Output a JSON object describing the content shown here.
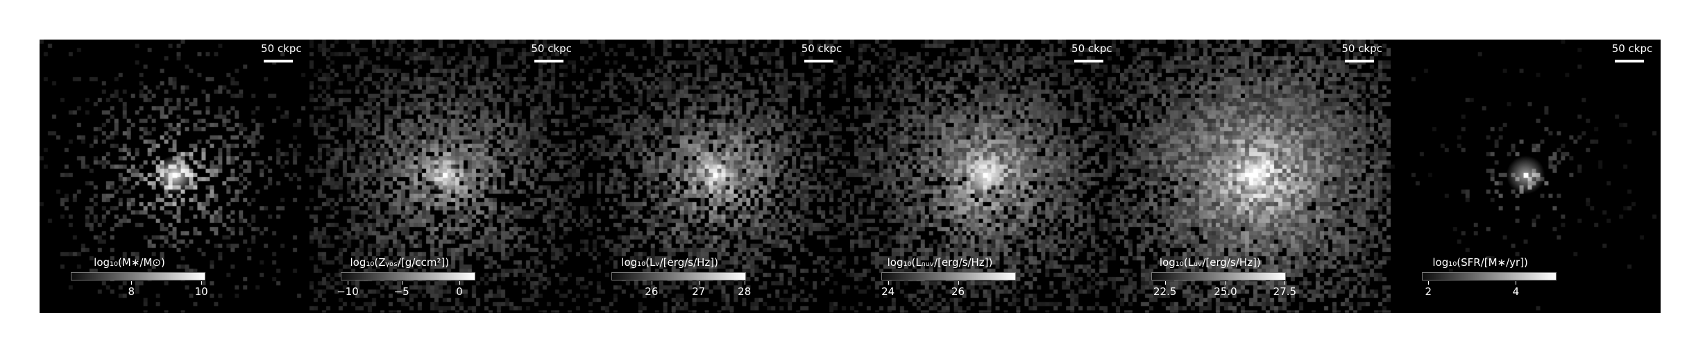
{
  "panels": [
    {
      "scale_label": "50 ckpc",
      "cb_title": "log₁₀(M∗/M⊙)",
      "ticks": [
        {
          "label": "8",
          "pos": 0.45
        },
        {
          "label": "10",
          "pos": 0.97
        }
      ],
      "intensity": 0.9,
      "spread": 0.25,
      "density": 0.35
    },
    {
      "scale_label": "50 ckpc",
      "cb_title": "log₁₀(Zᵧₒₛ/[g/ccm²])",
      "ticks": [
        {
          "label": "−10",
          "pos": 0.05
        },
        {
          "label": "−5",
          "pos": 0.45
        },
        {
          "label": "0",
          "pos": 0.88
        }
      ],
      "intensity": 0.7,
      "spread": 0.55,
      "density": 0.6
    },
    {
      "scale_label": "50 ckpc",
      "cb_title": "log₁₀(Lᵥ/[erg/s/Hz])",
      "ticks": [
        {
          "label": "26",
          "pos": 0.3
        },
        {
          "label": "27",
          "pos": 0.65
        },
        {
          "label": "28",
          "pos": 0.99
        }
      ],
      "intensity": 0.75,
      "spread": 0.5,
      "density": 0.6
    },
    {
      "scale_label": "50 ckpc",
      "cb_title": "log₁₀(Lₙᵤᵥ/[erg/s/Hz])",
      "ticks": [
        {
          "label": "24",
          "pos": 0.05
        },
        {
          "label": "26",
          "pos": 0.57
        }
      ],
      "intensity": 0.8,
      "spread": 0.55,
      "density": 0.7
    },
    {
      "scale_label": "50 ckpc",
      "cb_title": "log₁₀(Lᵤᵥ/[erg/s/Hz])",
      "ticks": [
        {
          "label": "22.5",
          "pos": 0.1
        },
        {
          "label": "25.0",
          "pos": 0.55
        },
        {
          "label": "27.5",
          "pos": 0.99
        }
      ],
      "intensity": 0.95,
      "spread": 0.6,
      "density": 0.85
    },
    {
      "scale_label": "50 ckpc",
      "cb_title": "log₁₀(SFR/[M∗/yr])",
      "ticks": [
        {
          "label": "2",
          "pos": 0.05
        },
        {
          "label": "4",
          "pos": 0.7
        }
      ],
      "intensity": 0.6,
      "spread": 0.12,
      "density": 0.12
    }
  ]
}
